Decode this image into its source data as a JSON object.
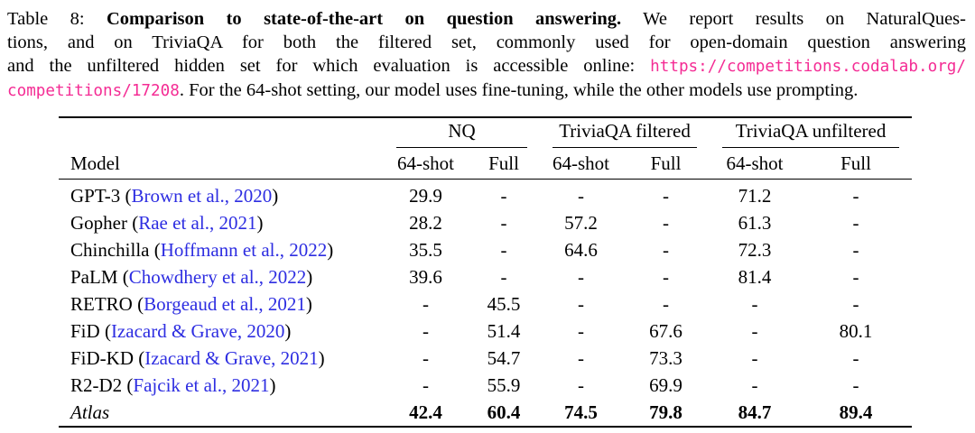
{
  "colors": {
    "citation_blue": "#2D2DE1",
    "url_pink": "#F42C94",
    "text": "#000000",
    "rule": "#000000"
  },
  "caption": {
    "lines": [
      [
        {
          "t": "Table 8: ",
          "s": "r"
        },
        {
          "t": "Comparison to state-of-the-art on question answering.",
          "s": "b"
        },
        {
          "t": " We report results on NaturalQues-",
          "s": "r"
        }
      ],
      [
        {
          "t": "tions, and on TriviaQA for both the filtered set, commonly used for open-domain question answering",
          "s": "r"
        }
      ],
      [
        {
          "t": "and the unfiltered hidden set for which evaluation is accessible online: ",
          "s": "r"
        },
        {
          "t": "https://competitions.codalab.org/",
          "s": "u"
        }
      ],
      [
        {
          "t": "competitions/17208",
          "s": "u"
        },
        {
          "t": ". For the 64-shot setting, our model uses fine-tuning, while the other models use prompting.",
          "s": "r"
        }
      ]
    ]
  },
  "table": {
    "groups": [
      {
        "label": "NQ"
      },
      {
        "label": "TriviaQA filtered"
      },
      {
        "label": "TriviaQA unfiltered"
      }
    ],
    "columns": [
      "Model",
      "64-shot",
      "Full",
      "64-shot",
      "Full",
      "64-shot",
      "Full"
    ],
    "rows": [
      {
        "model": "GPT-3",
        "citation": "Brown et al., 2020",
        "emphasis": false,
        "values": [
          "29.9",
          "-",
          "-",
          "-",
          "71.2",
          "-"
        ]
      },
      {
        "model": "Gopher",
        "citation": "Rae et al., 2021",
        "emphasis": false,
        "values": [
          "28.2",
          "-",
          "57.2",
          "-",
          "61.3",
          "-"
        ]
      },
      {
        "model": "Chinchilla",
        "citation": "Hoffmann et al., 2022",
        "emphasis": false,
        "values": [
          "35.5",
          "-",
          "64.6",
          "-",
          "72.3",
          "-"
        ]
      },
      {
        "model": "PaLM",
        "citation": "Chowdhery et al., 2022",
        "emphasis": false,
        "values": [
          "39.6",
          "-",
          "-",
          "-",
          "81.4",
          "-"
        ]
      },
      {
        "model": "RETRO",
        "citation": "Borgeaud et al., 2021",
        "emphasis": false,
        "values": [
          "-",
          "45.5",
          "-",
          "-",
          "-",
          "-"
        ]
      },
      {
        "model": "FiD",
        "citation": "Izacard & Grave, 2020",
        "emphasis": false,
        "values": [
          "-",
          "51.4",
          "-",
          "67.6",
          "-",
          "80.1"
        ]
      },
      {
        "model": "FiD-KD",
        "citation": "Izacard & Grave, 2021",
        "emphasis": false,
        "values": [
          "-",
          "54.7",
          "-",
          "73.3",
          "-",
          "-"
        ]
      },
      {
        "model": "R2-D2",
        "citation": "Fajcik et al., 2021",
        "emphasis": false,
        "values": [
          "-",
          "55.9",
          "-",
          "69.9",
          "-",
          "-"
        ]
      },
      {
        "model": "Atlas",
        "citation": null,
        "emphasis": true,
        "values": [
          "42.4",
          "60.4",
          "74.5",
          "79.8",
          "84.7",
          "89.4"
        ]
      }
    ]
  }
}
